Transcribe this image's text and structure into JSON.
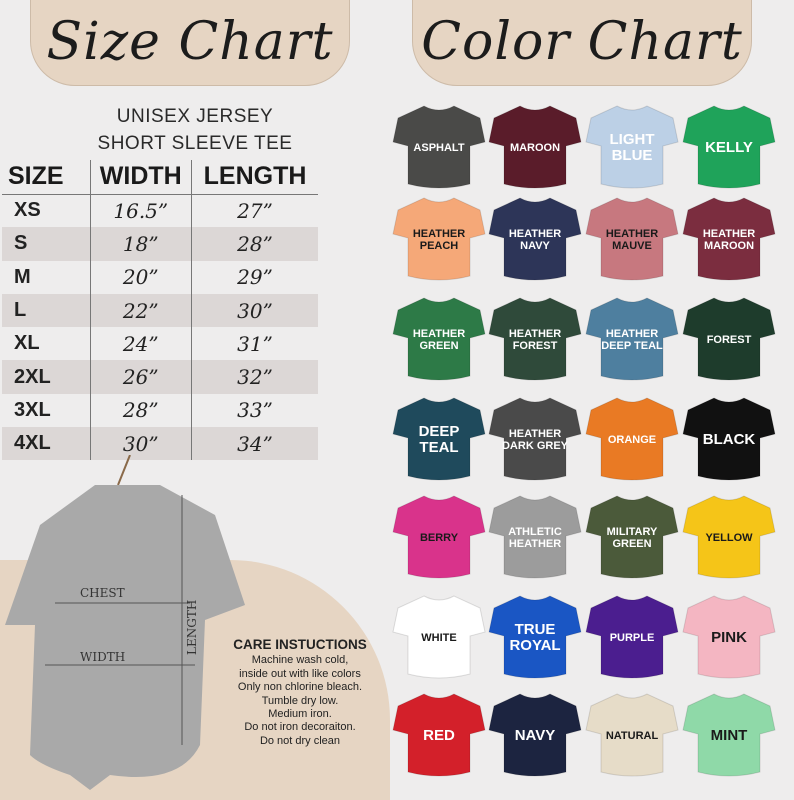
{
  "size_chart": {
    "title": "Size Chart",
    "subtitle_1": "UNISEX JERSEY",
    "subtitle_2": "SHORT SLEEVE TEE",
    "headers": [
      "SIZE",
      "WIDTH",
      "LENGTH"
    ],
    "rows": [
      [
        "XS",
        "16.5”",
        "27”"
      ],
      [
        "S",
        "18”",
        "28”"
      ],
      [
        "M",
        "20”",
        "29”"
      ],
      [
        "L",
        "22”",
        "30”"
      ],
      [
        "XL",
        "24”",
        "31”"
      ],
      [
        "2XL",
        "26”",
        "32”"
      ],
      [
        "3XL",
        "28”",
        "33”"
      ],
      [
        "4XL",
        "30”",
        "34”"
      ]
    ]
  },
  "diagram": {
    "chest": "CHEST",
    "width": "WIDTH",
    "length": "LENGTH"
  },
  "care": {
    "title": "CARE INSTUCTIONS",
    "lines": [
      "Machine wash cold,",
      "inside out with like colors",
      "Only non chlorine bleach.",
      "Tumble dry low.",
      "Medium iron.",
      "Do not iron decoraiton.",
      "Do not dry clean"
    ]
  },
  "color_chart": {
    "title": "Color Chart",
    "colors": [
      {
        "name": "ASPHALT",
        "hex": "#4a4a48",
        "text": "#ffffff"
      },
      {
        "name": "MAROON",
        "hex": "#5a1c2a",
        "text": "#ffffff"
      },
      {
        "name": "LIGHT BLUE",
        "hex": "#bcd0e6",
        "text": "#ffffff",
        "big": 1
      },
      {
        "name": "KELLY",
        "hex": "#1fa35a",
        "text": "#ffffff",
        "big": 1
      },
      {
        "name": "HEATHER PEACH",
        "hex": "#f5a878",
        "text": "#1a1a1a"
      },
      {
        "name": "HEATHER NAVY",
        "hex": "#2d3558",
        "text": "#ffffff"
      },
      {
        "name": "HEATHER MAUVE",
        "hex": "#c7787f",
        "text": "#1a1a1a"
      },
      {
        "name": "HEATHER MAROON",
        "hex": "#7b2d3f",
        "text": "#ffffff"
      },
      {
        "name": "HEATHER GREEN",
        "hex": "#2d7a47",
        "text": "#ffffff"
      },
      {
        "name": "HEATHER FOREST",
        "hex": "#2f4a3a",
        "text": "#ffffff"
      },
      {
        "name": "HEATHER DEEP TEAL",
        "hex": "#4e7f9f",
        "text": "#ffffff"
      },
      {
        "name": "FOREST",
        "hex": "#1e3c2c",
        "text": "#ffffff"
      },
      {
        "name": "DEEP TEAL",
        "hex": "#1f4a5c",
        "text": "#ffffff",
        "big": 1
      },
      {
        "name": "HEATHER DARK GREY",
        "hex": "#4a4a4a",
        "text": "#ffffff"
      },
      {
        "name": "ORANGE",
        "hex": "#e97a24",
        "text": "#ffffff"
      },
      {
        "name": "BLACK",
        "hex": "#111111",
        "text": "#ffffff",
        "big": 1
      },
      {
        "name": "BERRY",
        "hex": "#d9338b",
        "text": "#1a1a1a"
      },
      {
        "name": "ATHLETIC HEATHER",
        "hex": "#9c9c9c",
        "text": "#ffffff"
      },
      {
        "name": "MILITARY GREEN",
        "hex": "#4b5a3a",
        "text": "#ffffff"
      },
      {
        "name": "YELLOW",
        "hex": "#f5c518",
        "text": "#1a1a1a"
      },
      {
        "name": "WHITE",
        "hex": "#ffffff",
        "text": "#1a1a1a"
      },
      {
        "name": "TRUE ROYAL",
        "hex": "#1a56c4",
        "text": "#ffffff",
        "big": 1
      },
      {
        "name": "PURPLE",
        "hex": "#4b1e8f",
        "text": "#ffffff"
      },
      {
        "name": "PINK",
        "hex": "#f4b6c2",
        "text": "#1a1a1a",
        "big": 1
      },
      {
        "name": "RED",
        "hex": "#d3202a",
        "text": "#ffffff",
        "big": 1
      },
      {
        "name": "NAVY",
        "hex": "#1c2440",
        "text": "#ffffff",
        "big": 1
      },
      {
        "name": "NATURAL",
        "hex": "#e6dcc8",
        "text": "#1a1a1a"
      },
      {
        "name": "MINT",
        "hex": "#8fd9a8",
        "text": "#1a1a1a",
        "big": 1
      }
    ]
  }
}
